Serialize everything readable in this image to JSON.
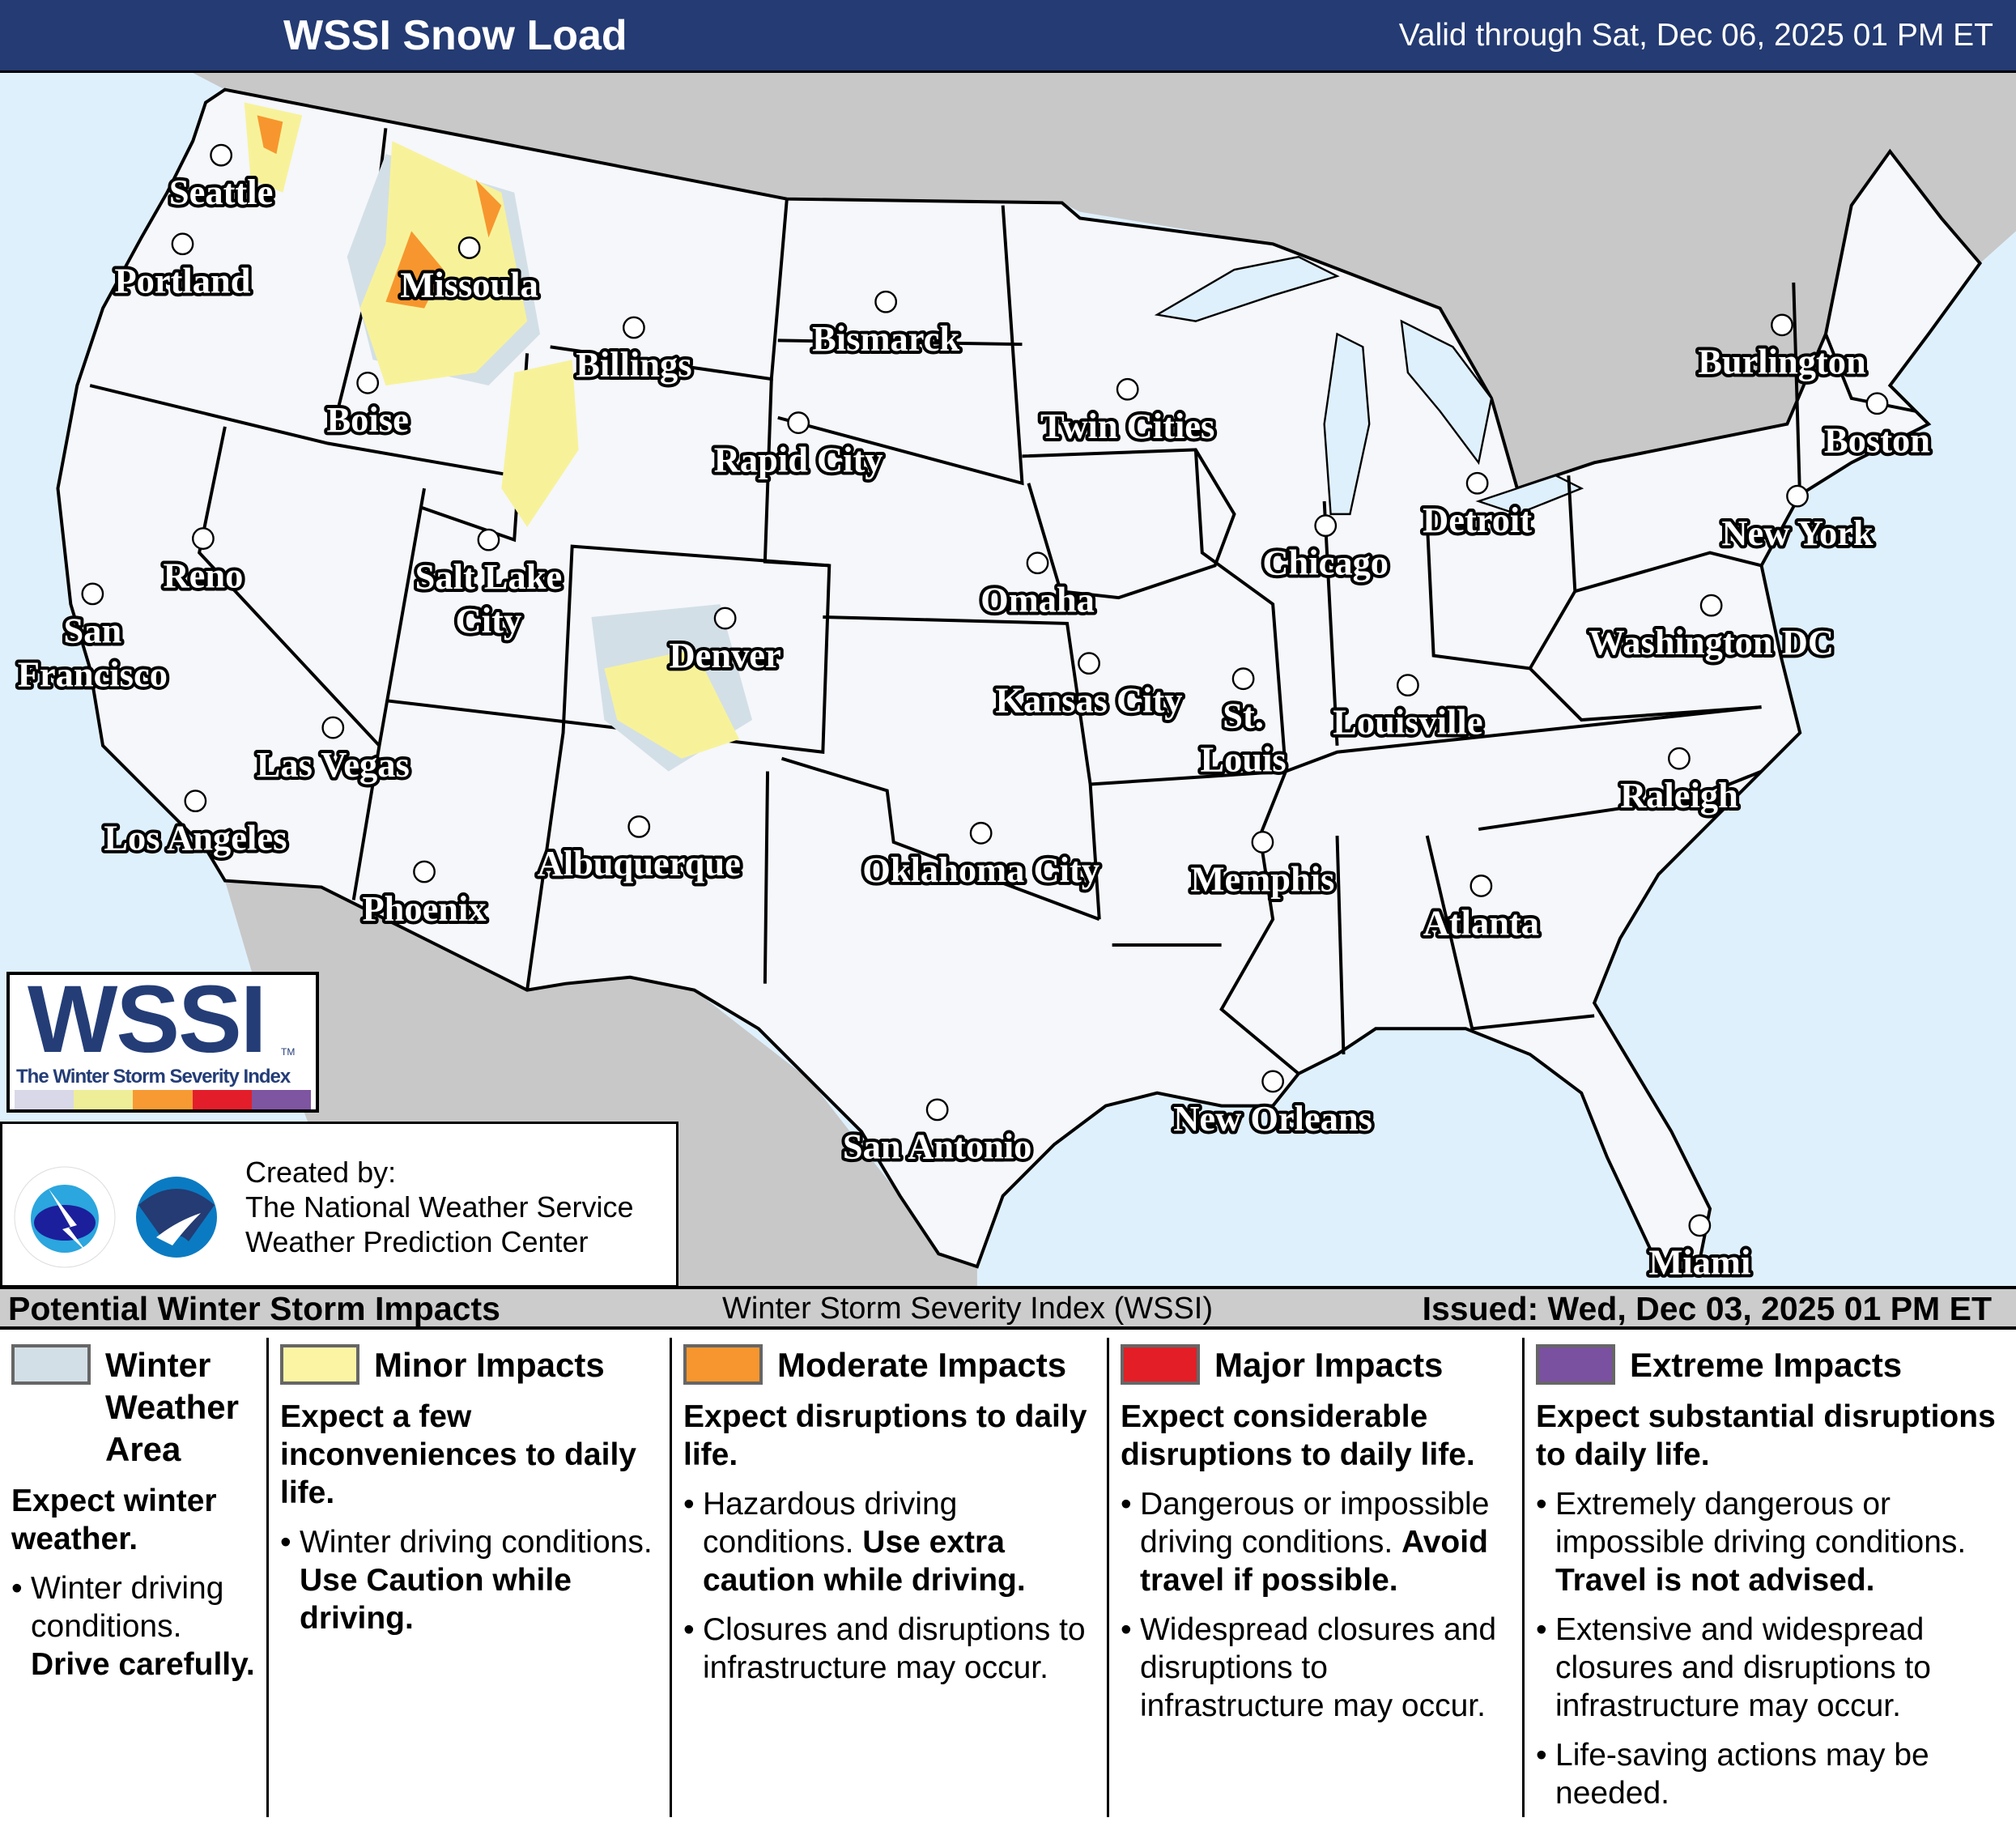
{
  "header": {
    "title": "WSSI Snow Load",
    "valid": "Valid through Sat, Dec 06, 2025 01 PM ET"
  },
  "logo": {
    "wordmark": "WSSI",
    "tm": "TM",
    "subtitle": "The Winter Storm Severity Index",
    "bar_colors": [
      "#d9d8e8",
      "#eeee99",
      "#f79a33",
      "#e31e2a",
      "#7e55a1"
    ]
  },
  "credits": {
    "created_by": "Created by:",
    "line1": "The National Weather Service",
    "line2": "Weather Prediction Center",
    "logos": [
      "nws-logo",
      "noaa-logo"
    ]
  },
  "map": {
    "colors": {
      "ocean": "#dff0fd",
      "us_land": "#f5f7fb",
      "foreign_land": "#c8c8c8",
      "minor": "#f7f29a",
      "moderate": "#f7962e",
      "winter": "#d3dfe6"
    },
    "cities": [
      {
        "name": "Seattle",
        "lines": [
          "Seattle"
        ]
      },
      {
        "name": "Portland",
        "lines": [
          "Portland"
        ]
      },
      {
        "name": "Missoula",
        "lines": [
          "Missoula"
        ]
      },
      {
        "name": "Billings",
        "lines": [
          "Billings"
        ]
      },
      {
        "name": "Bismarck",
        "lines": [
          "Bismarck"
        ]
      },
      {
        "name": "Boise",
        "lines": [
          "Boise"
        ]
      },
      {
        "name": "Rapid City",
        "lines": [
          "Rapid City"
        ]
      },
      {
        "name": "Twin Cities",
        "lines": [
          "Twin Cities"
        ]
      },
      {
        "name": "Burlington",
        "lines": [
          "Burlington"
        ]
      },
      {
        "name": "Boston",
        "lines": [
          "Boston"
        ]
      },
      {
        "name": "Reno",
        "lines": [
          "Reno"
        ]
      },
      {
        "name": "Salt Lake City",
        "lines": [
          "Salt Lake",
          "City"
        ]
      },
      {
        "name": "Chicago",
        "lines": [
          "Chicago"
        ]
      },
      {
        "name": "Detroit",
        "lines": [
          "Detroit"
        ]
      },
      {
        "name": "New York",
        "lines": [
          "New York"
        ]
      },
      {
        "name": "Omaha",
        "lines": [
          "Omaha"
        ]
      },
      {
        "name": "San Francisco",
        "lines": [
          "San",
          "Francisco"
        ]
      },
      {
        "name": "Denver",
        "lines": [
          "Denver"
        ]
      },
      {
        "name": "Washington DC",
        "lines": [
          "Washington DC"
        ]
      },
      {
        "name": "Kansas City",
        "lines": [
          "Kansas City"
        ]
      },
      {
        "name": "St. Louis",
        "lines": [
          "St.",
          "Louis"
        ]
      },
      {
        "name": "Louisville",
        "lines": [
          "Louisville"
        ]
      },
      {
        "name": "Las Vegas",
        "lines": [
          "Las Vegas"
        ]
      },
      {
        "name": "Raleigh",
        "lines": [
          "Raleigh"
        ]
      },
      {
        "name": "Los Angeles",
        "lines": [
          "Los Angeles"
        ]
      },
      {
        "name": "Albuquerque",
        "lines": [
          "Albuquerque"
        ]
      },
      {
        "name": "Oklahoma City",
        "lines": [
          "Oklahoma City"
        ]
      },
      {
        "name": "Memphis",
        "lines": [
          "Memphis"
        ]
      },
      {
        "name": "Phoenix",
        "lines": [
          "Phoenix"
        ]
      },
      {
        "name": "Atlanta",
        "lines": [
          "Atlanta"
        ]
      },
      {
        "name": "New Orleans",
        "lines": [
          "New Orleans"
        ]
      },
      {
        "name": "San Antonio",
        "lines": [
          "San Antonio"
        ]
      },
      {
        "name": "Miami",
        "lines": [
          "Miami"
        ]
      }
    ]
  },
  "legend": {
    "title": "Potential Winter Storm Impacts",
    "center": "Winter Storm Severity Index (WSSI)",
    "issued": "Issued: Wed, Dec 03, 2025 01 PM ET",
    "categories": [
      {
        "name": "Winter Weather Area",
        "color": "#d3dfe6",
        "summary": "Expect winter weather.",
        "bullets": [
          {
            "text": "Winter driving conditions.",
            "bold": "Drive carefully."
          }
        ]
      },
      {
        "name": "Minor Impacts",
        "color": "#fbf5a3",
        "summary": "Expect a few inconveniences to daily life.",
        "bullets": [
          {
            "text": "Winter driving conditions.",
            "bold": "Use Caution while driving."
          }
        ]
      },
      {
        "name": "Moderate Impacts",
        "color": "#f7962e",
        "summary": "Expect disruptions to daily life.",
        "bullets": [
          {
            "text": "Hazardous driving conditions.",
            "bold": "Use extra caution while driving."
          },
          {
            "text": "Closures and disruptions to infrastructure may occur.",
            "bold": ""
          }
        ]
      },
      {
        "name": "Major Impacts",
        "color": "#e31e26",
        "summary": "Expect considerable disruptions to daily life.",
        "bullets": [
          {
            "text": "Dangerous or impossible driving conditions.",
            "bold": "Avoid travel if possible."
          },
          {
            "text": "Widespread closures and disruptions to infrastructure may occur.",
            "bold": ""
          }
        ]
      },
      {
        "name": "Extreme Impacts",
        "color": "#7a50a0",
        "summary": "Expect substantial disruptions to daily life.",
        "bullets": [
          {
            "text": "Extremely dangerous or impossible driving conditions.",
            "bold": "Travel is not advised."
          },
          {
            "text": "Extensive and widespread closures and disruptions to infrastructure may occur.",
            "bold": ""
          },
          {
            "text": "Life-saving actions may be needed.",
            "bold": ""
          }
        ]
      }
    ]
  }
}
